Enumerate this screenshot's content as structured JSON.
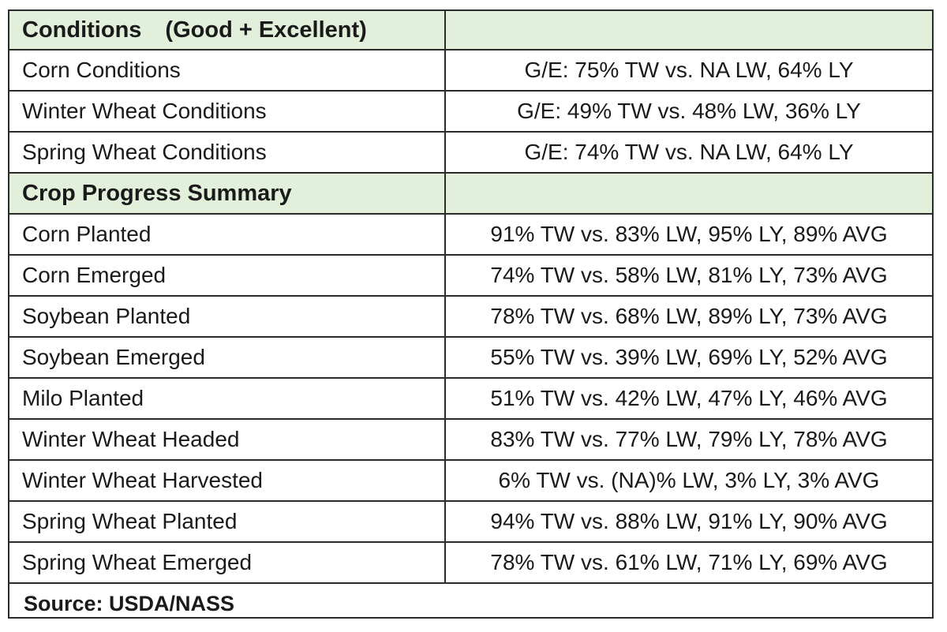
{
  "conditions": {
    "title": "Conditions",
    "subtitle": "(Good + Excellent)",
    "rows": [
      {
        "label": "Corn Conditions",
        "value": "G/E: 75% TW vs. NA LW, 64% LY"
      },
      {
        "label": "Winter Wheat Conditions",
        "value": "G/E: 49% TW vs. 48% LW, 36% LY"
      },
      {
        "label": "Spring Wheat Conditions",
        "value": "G/E: 74% TW vs. NA LW, 64% LY"
      }
    ]
  },
  "progress": {
    "title": "Crop Progress Summary",
    "rows": [
      {
        "label": "Corn Planted",
        "value": "91% TW vs. 83% LW, 95% LY, 89% AVG"
      },
      {
        "label": "Corn Emerged",
        "value": "74% TW vs. 58% LW, 81% LY, 73% AVG"
      },
      {
        "label": "Soybean Planted",
        "value": "78% TW vs. 68% LW, 89% LY, 73% AVG"
      },
      {
        "label": "Soybean Emerged",
        "value": "55% TW vs. 39% LW, 69% LY, 52% AVG"
      },
      {
        "label": "Milo Planted",
        "value": "51% TW vs. 42% LW, 47% LY, 46% AVG"
      },
      {
        "label": "Winter Wheat Headed",
        "value": "83% TW vs. 77% LW, 79% LY, 78% AVG"
      },
      {
        "label": "Winter Wheat Harvested",
        "value": "6% TW vs. (NA)% LW, 3% LY, 3% AVG"
      },
      {
        "label": "Spring Wheat Planted",
        "value": "94% TW vs. 88% LW, 91% LY, 90% AVG"
      },
      {
        "label": "Spring Wheat Emerged",
        "value": "78% TW vs. 61% LW, 71% LY, 69% AVG"
      }
    ]
  },
  "source": "Source: USDA/NASS",
  "colors": {
    "header_bg": "#e2efda",
    "border": "#2b2b2b"
  }
}
